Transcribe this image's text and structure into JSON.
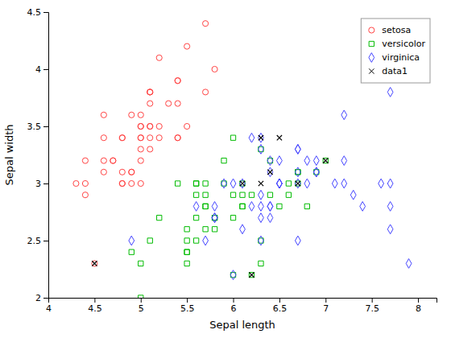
{
  "chart_data": {
    "type": "scatter",
    "xlabel": "Sepal length",
    "ylabel": "Sepal width",
    "xlim": [
      4.0,
      8.2
    ],
    "ylim": [
      2.0,
      4.5
    ],
    "xticks": [
      4,
      4.5,
      5,
      5.5,
      6,
      6.5,
      7,
      7.5,
      8
    ],
    "yticks": [
      2,
      2.5,
      3,
      3.5,
      4,
      4.5
    ],
    "grid": false,
    "legend": "upper right",
    "series": [
      {
        "name": "setosa",
        "color": "#FF4444",
        "marker": "circle",
        "x": [
          5.1,
          4.9,
          4.7,
          4.6,
          5.0,
          5.4,
          4.6,
          5.0,
          4.4,
          4.9,
          5.4,
          4.8,
          4.8,
          4.3,
          5.8,
          5.7,
          5.4,
          5.1,
          5.7,
          5.1,
          5.4,
          5.1,
          4.6,
          5.1,
          4.8,
          5.0,
          5.0,
          5.2,
          5.2,
          4.7,
          4.8,
          5.4,
          5.2,
          5.5,
          4.9,
          5.0,
          5.5,
          4.9,
          4.4,
          5.1,
          5.0,
          4.5,
          4.4,
          5.0,
          5.1,
          4.8,
          5.1,
          4.6,
          5.3,
          5.0
        ],
        "values": [
          3.5,
          3.0,
          3.2,
          3.1,
          3.6,
          3.9,
          3.4,
          3.4,
          2.9,
          3.1,
          3.7,
          3.4,
          3.0,
          3.0,
          4.0,
          4.4,
          3.9,
          3.5,
          3.8,
          3.8,
          3.4,
          3.7,
          3.6,
          3.3,
          3.4,
          3.0,
          3.4,
          3.5,
          3.4,
          3.2,
          3.1,
          3.4,
          4.1,
          4.2,
          3.1,
          3.2,
          3.5,
          3.6,
          3.0,
          3.4,
          3.5,
          2.3,
          3.2,
          3.5,
          3.8,
          3.0,
          3.8,
          3.2,
          3.7,
          3.3
        ]
      },
      {
        "name": "versicolor",
        "color": "#00BB00",
        "marker": "square",
        "x": [
          7.0,
          6.4,
          6.9,
          5.5,
          6.5,
          5.7,
          6.3,
          4.9,
          6.6,
          5.2,
          5.0,
          5.9,
          6.0,
          6.1,
          5.6,
          6.7,
          5.6,
          5.8,
          6.2,
          5.6,
          5.9,
          6.1,
          6.3,
          6.1,
          6.4,
          6.6,
          6.8,
          6.7,
          6.0,
          5.7,
          5.5,
          5.5,
          5.8,
          6.0,
          5.4,
          6.0,
          6.7,
          6.3,
          5.6,
          5.5,
          5.5,
          6.1,
          5.8,
          5.0,
          5.6,
          5.7,
          5.7,
          6.2,
          5.1,
          5.7
        ],
        "values": [
          3.2,
          3.2,
          3.1,
          2.3,
          2.8,
          2.8,
          3.3,
          2.4,
          2.9,
          2.7,
          2.0,
          3.0,
          2.2,
          2.9,
          2.9,
          3.1,
          3.0,
          2.7,
          2.2,
          2.5,
          3.2,
          2.8,
          2.5,
          2.8,
          2.9,
          3.0,
          2.8,
          3.0,
          2.9,
          2.6,
          2.4,
          2.4,
          2.7,
          2.7,
          3.0,
          3.4,
          3.1,
          2.3,
          3.0,
          2.5,
          2.6,
          3.0,
          2.6,
          2.3,
          2.7,
          3.0,
          2.9,
          2.9,
          2.5,
          2.8
        ]
      },
      {
        "name": "virginica",
        "color": "#4444FF",
        "marker": "diamond",
        "x": [
          6.3,
          5.8,
          7.1,
          6.3,
          6.5,
          7.6,
          4.9,
          7.3,
          6.7,
          7.2,
          6.5,
          6.4,
          6.8,
          5.7,
          5.8,
          6.4,
          6.5,
          7.7,
          7.7,
          6.0,
          6.9,
          5.6,
          7.7,
          6.3,
          6.7,
          7.2,
          6.2,
          6.1,
          6.4,
          7.2,
          7.4,
          7.9,
          6.4,
          6.3,
          6.1,
          7.7,
          6.3,
          6.4,
          6.0,
          6.9,
          6.7,
          6.9,
          5.8,
          6.8,
          6.7,
          6.7,
          6.3,
          6.5,
          6.2,
          5.9
        ],
        "values": [
          3.3,
          2.7,
          3.0,
          2.9,
          3.0,
          3.0,
          2.5,
          2.9,
          2.5,
          3.6,
          3.2,
          2.7,
          3.0,
          2.5,
          2.8,
          3.2,
          3.0,
          3.8,
          2.6,
          2.2,
          3.2,
          2.8,
          2.8,
          2.7,
          3.3,
          3.2,
          2.8,
          3.0,
          2.8,
          3.0,
          2.8,
          2.3,
          2.8,
          2.8,
          2.6,
          3.0,
          3.4,
          3.1,
          3.0,
          3.1,
          3.1,
          3.1,
          2.7,
          3.2,
          3.3,
          3.0,
          2.5,
          3.0,
          3.4,
          3.0
        ]
      },
      {
        "name": "data1",
        "color": "#000000",
        "marker": "x",
        "x": [
          4.5,
          6.1,
          6.3,
          6.3,
          6.5,
          6.7,
          7.0,
          6.2,
          6.4
        ],
        "values": [
          2.3,
          3.0,
          3.4,
          3.0,
          3.4,
          3.0,
          3.2,
          2.2,
          3.1
        ]
      }
    ]
  }
}
